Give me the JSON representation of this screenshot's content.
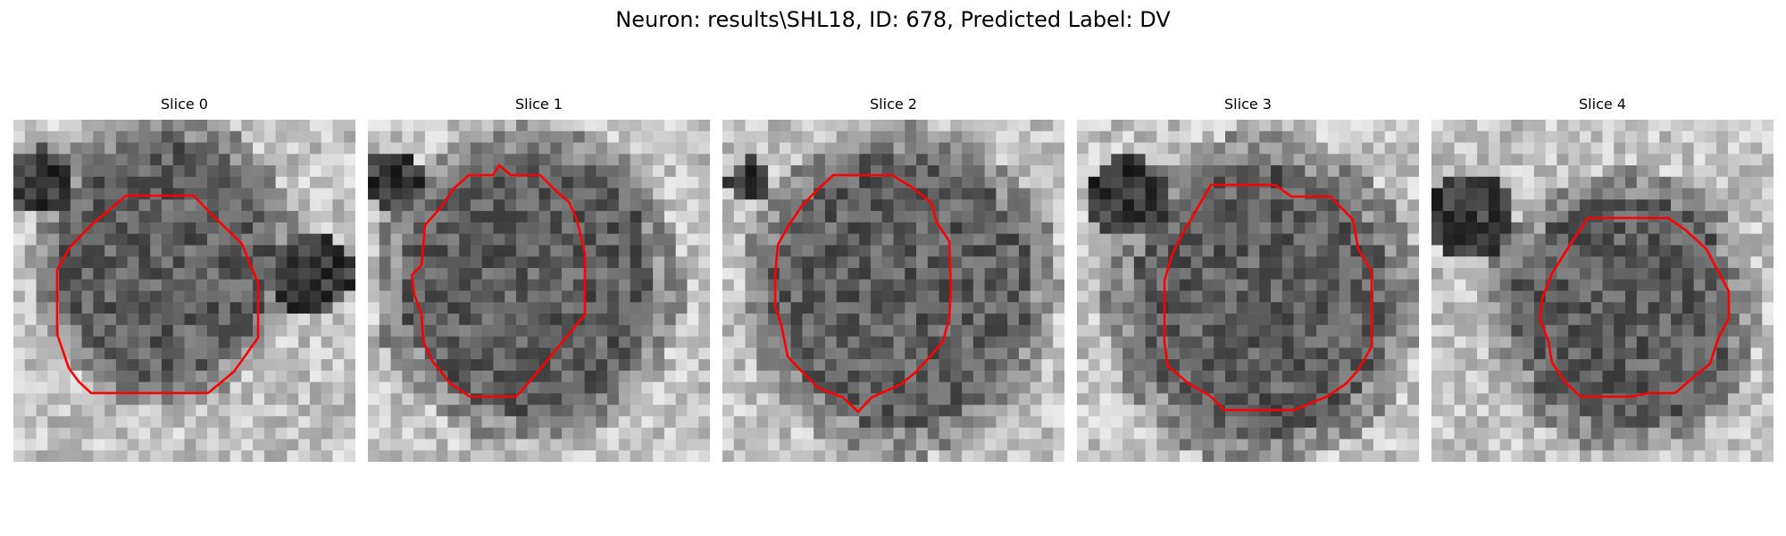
{
  "figure": {
    "title": "Neuron: results\\SHL18, ID: 678, Predicted Label: DV"
  },
  "panels": [
    {
      "title": "Slice 0",
      "contour_color": "#ff0000"
    },
    {
      "title": "Slice 1",
      "contour_color": "#ff0000"
    },
    {
      "title": "Slice 2",
      "contour_color": "#ff0000"
    },
    {
      "title": "Slice 3",
      "contour_color": "#ff0000"
    },
    {
      "title": "Slice 4",
      "contour_color": "#ff0000"
    }
  ],
  "colors": {
    "background": "#ffffff",
    "contour": "#ff0000"
  }
}
